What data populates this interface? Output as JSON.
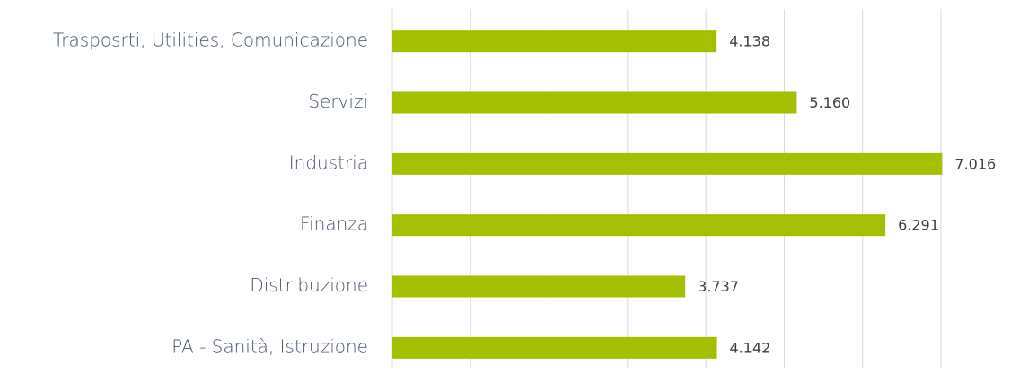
{
  "chart_data": {
    "type": "barh",
    "categories": [
      "Trasposrti, Utilities, Comunicazione",
      "Servizi",
      "Industria",
      "Finanza",
      "Distribuzione",
      "PA - Sanità, Istruzione"
    ],
    "values": [
      4.138,
      5.16,
      7.016,
      6.291,
      3.737,
      4.142
    ],
    "value_labels": [
      "4.138",
      "5.160",
      "7.016",
      "6.291",
      "3.737",
      "4.142"
    ],
    "color": "#a3bf00",
    "xlim": [
      0,
      7
    ],
    "xticks": [
      0,
      1,
      2,
      3,
      4,
      5,
      6,
      7
    ],
    "grid": true
  }
}
